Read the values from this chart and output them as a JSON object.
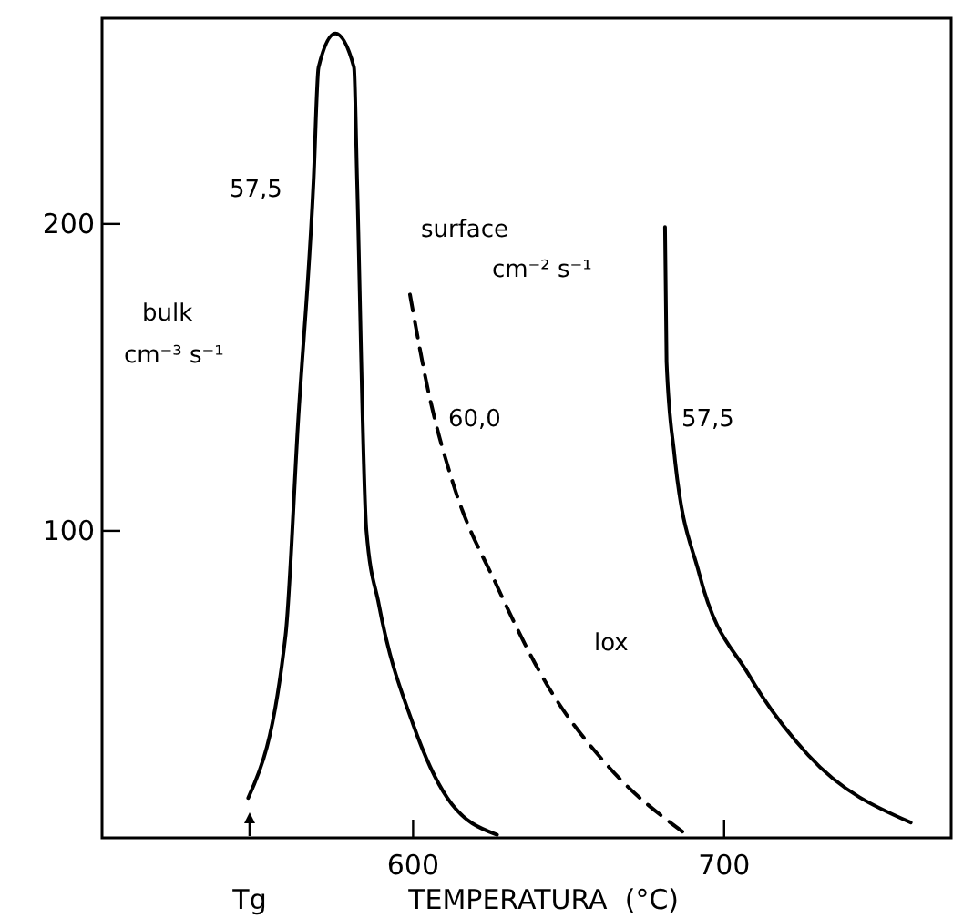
{
  "chart_data": {
    "type": "line",
    "xlabel": "TEMPERATURA  (°C)",
    "xlim": [
      500,
      773
    ],
    "ylim": [
      0,
      267
    ],
    "xticks": [
      600,
      700
    ],
    "yticks": [
      100,
      200
    ],
    "grid": false,
    "marker": "none",
    "series": [
      {
        "color": "#000000",
        "line_style": "solid",
        "x": [
          547,
          559,
          563,
          568,
          569.6,
          575,
          581,
          582,
          585,
          589,
          600,
          611,
          627
        ],
        "values": [
          13,
          66,
          135,
          214,
          251,
          262,
          251,
          214,
          100,
          76,
          37,
          13,
          1
        ]
      },
      {
        "color": "#000000",
        "line_style": "dashed",
        "x": [
          599,
          605,
          613,
          627,
          643,
          663,
          688
        ],
        "values": [
          177,
          145,
          115,
          82,
          50,
          23,
          1
        ]
      },
      {
        "color": "#000000",
        "line_style": "solid",
        "x": [
          681,
          681.5,
          684,
          692,
          708,
          727,
          760
        ],
        "values": [
          199,
          155,
          125,
          86,
          53,
          27,
          5
        ]
      }
    ],
    "annotations": [
      "57,5",
      "bulk",
      "cm⁻³ s⁻¹",
      "surface",
      "cm⁻² s⁻¹",
      "60,0",
      "57,5",
      "lox",
      "Tg"
    ]
  }
}
